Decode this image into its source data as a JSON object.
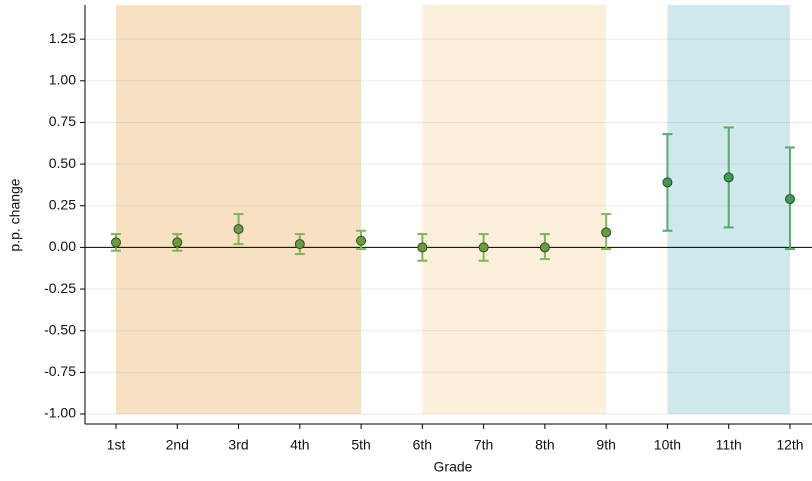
{
  "chart_data": {
    "type": "errorbar",
    "xlabel": "Grade",
    "ylabel": "p.p. change",
    "categories": [
      "1st",
      "2nd",
      "3rd",
      "4th",
      "5th",
      "6th",
      "7th",
      "8th",
      "9th",
      "10th",
      "11th",
      "12th"
    ],
    "values": [
      0.03,
      0.03,
      0.11,
      0.02,
      0.04,
      0.0,
      0.0,
      0.0,
      0.09,
      0.39,
      0.42,
      0.29
    ],
    "lower": [
      -0.02,
      -0.02,
      0.02,
      -0.04,
      -0.01,
      -0.08,
      -0.08,
      -0.07,
      -0.01,
      0.1,
      0.12,
      -0.01
    ],
    "upper": [
      0.08,
      0.08,
      0.2,
      0.08,
      0.1,
      0.08,
      0.08,
      0.08,
      0.2,
      0.68,
      0.72,
      0.6
    ],
    "point_colors": [
      "#6f9a44",
      "#6f9a44",
      "#6f9a44",
      "#6f9a44",
      "#6f9a44",
      "#6f9a44",
      "#6f9a44",
      "#6f9a44",
      "#6f9a44",
      "#3e9a5a",
      "#3e9a5a",
      "#3e9a5a"
    ],
    "bar_colors": [
      "#7fb55a",
      "#7fb55a",
      "#7fb55a",
      "#7fb55a",
      "#7fb55a",
      "#7fb55a",
      "#7fb55a",
      "#7fb55a",
      "#7fb55a",
      "#5aaa6c",
      "#5aaa6c",
      "#5aaa6c"
    ],
    "spans": [
      {
        "from": "1st",
        "to": "5th",
        "y0": -1.0,
        "color": "#f8e0c2"
      },
      {
        "from": "6th",
        "to": "9th",
        "y0": -1.0,
        "color": "#fcefdb"
      },
      {
        "from": "10th",
        "to": "12th",
        "y0": -1.0,
        "color": "#d0e9ed"
      }
    ],
    "hline": 0,
    "ylim": [
      -1.06,
      1.455
    ],
    "yticks": [
      {
        "value": -1.0,
        "label": "-1.00"
      },
      -0.75,
      {
        "value": -0.5,
        "label": "-0.50"
      },
      -0.25,
      {
        "value": 0.0,
        "label": "0.00"
      },
      0.25,
      {
        "value": 0.5,
        "label": "0.50"
      },
      0.75,
      {
        "value": 1.0,
        "label": "1.00"
      },
      1.25
    ],
    "grid": true
  }
}
